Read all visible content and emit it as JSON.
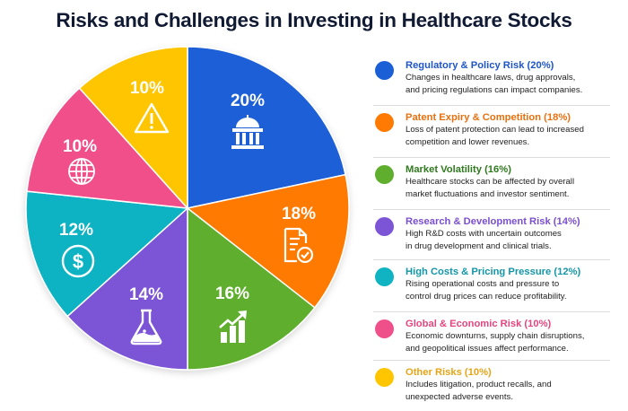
{
  "title": "Risks and Challenges in Investing in Healthcare Stocks",
  "chart_data": {
    "type": "pie",
    "title": "Risks and Challenges in Investing in Healthcare Stocks",
    "categories": [
      "Regulatory & Policy Risk",
      "Patent Expiry & Competition",
      "Market Volatility",
      "Research & Development Risk",
      "High Costs & Pricing Pressure",
      "Global & Economic Risk",
      "Other Risks"
    ],
    "values": [
      20,
      18,
      16,
      14,
      12,
      10,
      10
    ],
    "unit": "%",
    "colors": [
      "#1b5fd6",
      "#ff7a00",
      "#5fae2e",
      "#7b55d6",
      "#10b3c2",
      "#f0508a",
      "#ffc600"
    ],
    "slice_labels": [
      "20%",
      "18%",
      "16%",
      "14%",
      "12%",
      "10%",
      "10%"
    ],
    "slice_icons": [
      "government-building-icon",
      "document-check-icon",
      "chart-growth-icon",
      "flask-icon",
      "dollar-icon",
      "globe-icon",
      "warning-icon"
    ],
    "legend_position": "right",
    "start_angle_deg": 0,
    "direction": "clockwise"
  },
  "legend": [
    {
      "title": "Regulatory & Policy Risk (20%)",
      "desc1": "Changes in healthcare laws, drug approvals,",
      "desc2": "and pricing regulations can impact companies.",
      "color": "#1b5fd6",
      "title_color": "#1e55c8"
    },
    {
      "title": "Patent Expiry & Competition (18%)",
      "desc1": "Loss of patent protection can lead to increased",
      "desc2": "competition and lower revenues.",
      "color": "#ff7a00",
      "title_color": "#e8700f"
    },
    {
      "title": "Market Volatility (16%)",
      "desc1": "Healthcare stocks can be affected by overall",
      "desc2": "market fluctuations and investor sentiment.",
      "color": "#5fae2e",
      "title_color": "#2f7a1e"
    },
    {
      "title": "Research & Development Risk (14%)",
      "desc1": "High R&D costs with uncertain outcomes",
      "desc2": "in drug development and clinical trials.",
      "color": "#7b55d6",
      "title_color": "#7a4fd0"
    },
    {
      "title": "High Costs & Pricing Pressure (12%)",
      "desc1": "Rising operational costs and pressure to",
      "desc2": "control drug prices can reduce profitability.",
      "color": "#10b3c2",
      "title_color": "#1396a8"
    },
    {
      "title": "Global & Economic Risk (10%)",
      "desc1": "Economic downturns, supply chain disruptions,",
      "desc2": "and geopolitical issues affect performance.",
      "color": "#f0508a",
      "title_color": "#e5457e"
    },
    {
      "title": "Other Risks (10%)",
      "desc1": "Includes litigation, product recalls, and",
      "desc2": "unexpected adverse events.",
      "color": "#ffc600",
      "title_color": "#e6a417"
    }
  ]
}
